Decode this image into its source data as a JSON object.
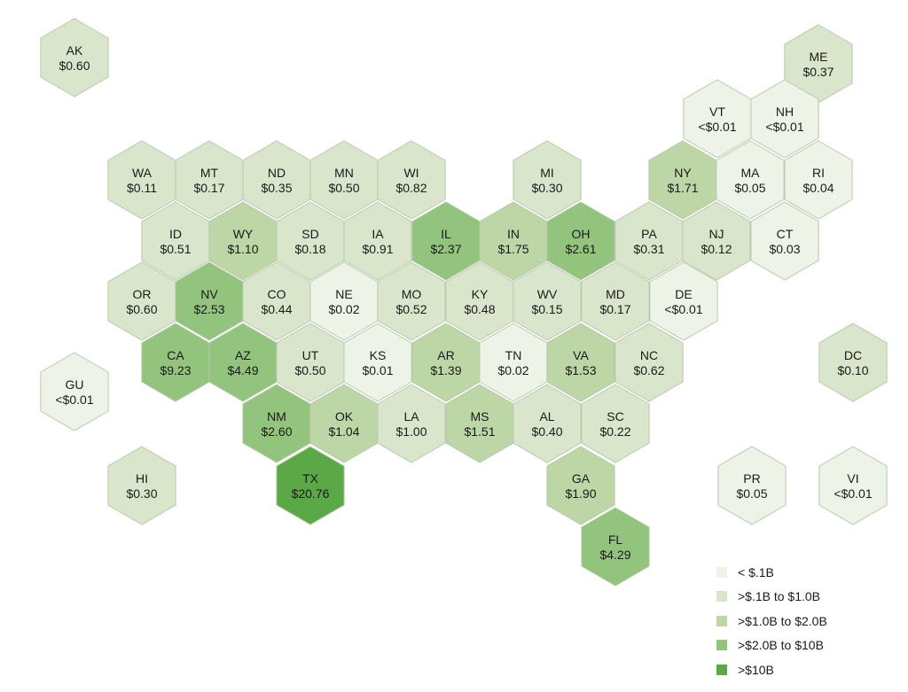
{
  "legend": {
    "items": [
      {
        "label": "< $.1B",
        "color": "#eef3e8"
      },
      {
        "label": ">$.1B to $1.0B",
        "color": "#d9e6cc"
      },
      {
        "label": ">$1.0B to $2.0B",
        "color": "#bcd6a6"
      },
      {
        "label": ">$2.0B to $10B",
        "color": "#93c47d"
      },
      {
        "label": ">$10B",
        "color": "#5aa846"
      }
    ]
  },
  "states": [
    {
      "abbr": "AK",
      "value": "$0.60",
      "tier": 1
    },
    {
      "abbr": "ME",
      "value": "$0.37",
      "tier": 1
    },
    {
      "abbr": "VT",
      "value": "<$0.01",
      "tier": 0
    },
    {
      "abbr": "NH",
      "value": "<$0.01",
      "tier": 0
    },
    {
      "abbr": "WA",
      "value": "$0.11",
      "tier": 1
    },
    {
      "abbr": "MT",
      "value": "$0.17",
      "tier": 1
    },
    {
      "abbr": "ND",
      "value": "$0.35",
      "tier": 1
    },
    {
      "abbr": "MN",
      "value": "$0.50",
      "tier": 1
    },
    {
      "abbr": "WI",
      "value": "$0.82",
      "tier": 1
    },
    {
      "abbr": "MI",
      "value": "$0.30",
      "tier": 1
    },
    {
      "abbr": "NY",
      "value": "$1.71",
      "tier": 2
    },
    {
      "abbr": "MA",
      "value": "$0.05",
      "tier": 0
    },
    {
      "abbr": "RI",
      "value": "$0.04",
      "tier": 0
    },
    {
      "abbr": "ID",
      "value": "$0.51",
      "tier": 1
    },
    {
      "abbr": "WY",
      "value": "$1.10",
      "tier": 2
    },
    {
      "abbr": "SD",
      "value": "$0.18",
      "tier": 1
    },
    {
      "abbr": "IA",
      "value": "$0.91",
      "tier": 1
    },
    {
      "abbr": "IL",
      "value": "$2.37",
      "tier": 3
    },
    {
      "abbr": "IN",
      "value": "$1.75",
      "tier": 2
    },
    {
      "abbr": "OH",
      "value": "$2.61",
      "tier": 3
    },
    {
      "abbr": "PA",
      "value": "$0.31",
      "tier": 1
    },
    {
      "abbr": "NJ",
      "value": "$0.12",
      "tier": 1
    },
    {
      "abbr": "CT",
      "value": "$0.03",
      "tier": 0
    },
    {
      "abbr": "OR",
      "value": "$0.60",
      "tier": 1
    },
    {
      "abbr": "NV",
      "value": "$2.53",
      "tier": 3
    },
    {
      "abbr": "CO",
      "value": "$0.44",
      "tier": 1
    },
    {
      "abbr": "NE",
      "value": "$0.02",
      "tier": 0
    },
    {
      "abbr": "MO",
      "value": "$0.52",
      "tier": 1
    },
    {
      "abbr": "KY",
      "value": "$0.48",
      "tier": 1
    },
    {
      "abbr": "WV",
      "value": "$0.15",
      "tier": 1
    },
    {
      "abbr": "MD",
      "value": "$0.17",
      "tier": 1
    },
    {
      "abbr": "DE",
      "value": "<$0.01",
      "tier": 0
    },
    {
      "abbr": "GU",
      "value": "<$0.01",
      "tier": 0
    },
    {
      "abbr": "CA",
      "value": "$9.23",
      "tier": 3
    },
    {
      "abbr": "AZ",
      "value": "$4.49",
      "tier": 3
    },
    {
      "abbr": "UT",
      "value": "$0.50",
      "tier": 1
    },
    {
      "abbr": "KS",
      "value": "$0.01",
      "tier": 0
    },
    {
      "abbr": "AR",
      "value": "$1.39",
      "tier": 2
    },
    {
      "abbr": "TN",
      "value": "$0.02",
      "tier": 0
    },
    {
      "abbr": "VA",
      "value": "$1.53",
      "tier": 2
    },
    {
      "abbr": "NC",
      "value": "$0.62",
      "tier": 1
    },
    {
      "abbr": "DC",
      "value": "$0.10",
      "tier": 1
    },
    {
      "abbr": "NM",
      "value": "$2.60",
      "tier": 3
    },
    {
      "abbr": "OK",
      "value": "$1.04",
      "tier": 2
    },
    {
      "abbr": "LA",
      "value": "$1.00",
      "tier": 1
    },
    {
      "abbr": "MS",
      "value": "$1.51",
      "tier": 2
    },
    {
      "abbr": "AL",
      "value": "$0.40",
      "tier": 1
    },
    {
      "abbr": "SC",
      "value": "$0.22",
      "tier": 1
    },
    {
      "abbr": "HI",
      "value": "$0.30",
      "tier": 1
    },
    {
      "abbr": "TX",
      "value": "$20.76",
      "tier": 4
    },
    {
      "abbr": "GA",
      "value": "$1.90",
      "tier": 2
    },
    {
      "abbr": "PR",
      "value": "$0.05",
      "tier": 0
    },
    {
      "abbr": "VI",
      "value": "<$0.01",
      "tier": 0
    },
    {
      "abbr": "FL",
      "value": "$4.29",
      "tier": 3
    }
  ]
}
